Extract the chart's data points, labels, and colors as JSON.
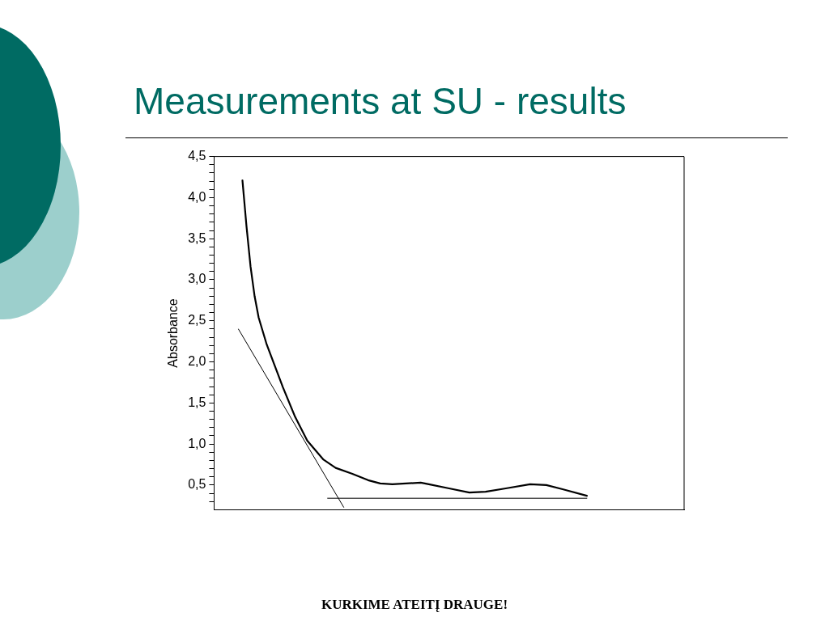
{
  "chart_data": {
    "type": "line",
    "title": "Measurements at SU - results",
    "ylabel": "Absorbance",
    "categories": [
      null,
      null,
      null,
      null,
      null,
      null,
      null,
      null,
      null,
      null,
      null,
      null,
      null,
      null,
      null,
      null,
      null,
      null,
      null,
      null,
      null,
      null,
      null,
      null,
      null,
      null,
      null,
      null,
      null,
      null,
      null,
      null,
      null,
      null,
      null,
      null,
      null,
      null,
      null,
      null,
      null,
      null,
      null,
      null,
      null,
      null,
      null,
      null,
      null,
      null,
      null,
      null,
      null,
      null,
      null,
      null,
      null,
      null,
      null,
      null,
      null,
      null,
      null,
      null,
      null,
      null,
      null,
      null,
      null,
      null,
      null,
      null,
      null,
      null,
      null,
      null,
      null,
      null,
      null,
      null,
      null,
      null,
      null,
      null,
      null,
      null,
      null,
      null,
      null,
      null,
      null,
      null,
      null,
      null,
      null,
      null,
      null,
      null,
      null,
      null,
      null,
      null,
      null,
      null,
      null,
      null,
      null,
      null,
      null,
      null,
      null,
      null,
      null,
      null,
      null,
      null,
      null
    ],
    "series": [
      {
        "color": "#000000",
        "values": [
          null,
          null,
          null,
          null,
          null,
          null,
          null,
          4.21,
          3.65,
          3.16,
          2.8,
          2.54,
          null,
          2.21,
          null,
          1.95,
          null,
          1.69,
          null,
          null,
          1.33,
          null,
          null,
          1.04,
          null,
          null,
          null,
          0.81,
          null,
          null,
          0.71,
          null,
          null,
          null,
          0.64,
          null,
          null,
          null,
          0.56,
          null,
          null,
          0.52,
          null,
          null,
          0.51,
          null,
          null,
          null,
          null,
          null,
          null,
          0.53,
          null,
          0.51,
          null,
          null,
          null,
          null,
          0.46,
          null,
          null,
          null,
          null,
          0.41,
          null,
          null,
          null,
          0.42,
          null,
          null,
          null,
          null,
          0.46,
          null,
          null,
          null,
          null,
          null,
          0.51,
          null,
          null,
          null,
          0.5,
          null,
          null,
          null,
          0.45,
          null,
          null,
          null,
          null,
          null,
          0.37,
          null,
          null,
          null,
          null,
          null,
          null,
          null,
          null,
          null,
          null,
          null,
          null,
          null,
          null,
          null,
          null,
          null,
          null,
          null,
          null,
          null,
          null,
          null,
          null
        ]
      },
      {
        "color": "#000000",
        "values": [
          null,
          null,
          null,
          null,
          null,
          null,
          2.4,
          null,
          null,
          null,
          null,
          null,
          null,
          null,
          null,
          null,
          null,
          null,
          null,
          null,
          null,
          null,
          null,
          null,
          null,
          null,
          null,
          null,
          null,
          null,
          null,
          null,
          0.23,
          null,
          null,
          null,
          null,
          null,
          null,
          null,
          null,
          null,
          null,
          null,
          null,
          null,
          null,
          null,
          null,
          null,
          null,
          null,
          null,
          null,
          null,
          null,
          null,
          null,
          null,
          null,
          null,
          null,
          null,
          null,
          null,
          null,
          null,
          null,
          null,
          null,
          null,
          null,
          null,
          null,
          null,
          null,
          null,
          null,
          null,
          null,
          null,
          null,
          null,
          null,
          null,
          null,
          null,
          null,
          null,
          null,
          null,
          null,
          null,
          null,
          null,
          null,
          null,
          null,
          null,
          null,
          null,
          null,
          null,
          null,
          null,
          null,
          null,
          null,
          null,
          null,
          null,
          null,
          null,
          null,
          null,
          null,
          null
        ]
      },
      {
        "color": "#000000",
        "values": [
          null,
          null,
          null,
          null,
          null,
          null,
          null,
          null,
          null,
          null,
          null,
          null,
          null,
          null,
          null,
          null,
          null,
          null,
          null,
          null,
          null,
          null,
          null,
          null,
          null,
          null,
          null,
          null,
          0.34,
          null,
          null,
          null,
          null,
          null,
          null,
          null,
          null,
          null,
          null,
          null,
          null,
          null,
          null,
          null,
          null,
          null,
          null,
          null,
          null,
          null,
          null,
          null,
          null,
          null,
          null,
          null,
          null,
          null,
          null,
          null,
          null,
          null,
          null,
          null,
          null,
          null,
          null,
          null,
          null,
          null,
          null,
          null,
          null,
          null,
          null,
          null,
          null,
          null,
          null,
          null,
          null,
          null,
          null,
          null,
          null,
          null,
          null,
          null,
          null,
          null,
          null,
          null,
          0.34,
          null,
          null,
          null,
          null,
          null,
          null,
          null,
          null,
          null,
          null,
          null,
          null,
          null,
          null,
          null,
          null,
          null,
          null,
          null,
          null,
          null,
          null,
          null,
          null
        ]
      }
    ],
    "ylim": [
      0.2,
      4.5
    ],
    "yticks": [
      {
        "value": 0.3,
        "label": null
      },
      {
        "value": 0.4,
        "label": null
      },
      {
        "value": 0.5,
        "label": "0,5"
      },
      {
        "value": 0.6,
        "label": null
      },
      {
        "value": 0.7,
        "label": null
      },
      {
        "value": 0.8,
        "label": null
      },
      {
        "value": 0.9,
        "label": null
      },
      {
        "value": 1,
        "label": "1,0"
      },
      {
        "value": 1.1,
        "label": null
      },
      {
        "value": 1.2,
        "label": null
      },
      {
        "value": 1.3,
        "label": null
      },
      {
        "value": 1.4,
        "label": null
      },
      {
        "value": 1.5,
        "label": "1,5"
      },
      {
        "value": 1.6,
        "label": null
      },
      {
        "value": 1.7,
        "label": null
      },
      {
        "value": 1.8,
        "label": null
      },
      {
        "value": 1.9,
        "label": null
      },
      {
        "value": 2,
        "label": "2,0"
      },
      {
        "value": 2.1,
        "label": null
      },
      {
        "value": 2.2,
        "label": null
      },
      {
        "value": 2.3,
        "label": null
      },
      {
        "value": 2.4,
        "label": null
      },
      {
        "value": 2.5,
        "label": "2,5"
      },
      {
        "value": 2.6,
        "label": null
      },
      {
        "value": 2.7,
        "label": null
      },
      {
        "value": 2.8,
        "label": null
      },
      {
        "value": 2.9,
        "label": null
      },
      {
        "value": 3,
        "label": "3,0"
      },
      {
        "value": 3.1,
        "label": null
      },
      {
        "value": 3.2,
        "label": null
      },
      {
        "value": 3.3,
        "label": null
      },
      {
        "value": 3.4,
        "label": null
      },
      {
        "value": 3.5,
        "label": "3,5"
      },
      {
        "value": 3.6,
        "label": null
      },
      {
        "value": 3.7,
        "label": null
      },
      {
        "value": 3.8,
        "label": null
      },
      {
        "value": 3.9,
        "label": null
      },
      {
        "value": 4,
        "label": "4,0"
      },
      {
        "value": 4.1,
        "label": null
      },
      {
        "value": 4.2,
        "label": null
      },
      {
        "value": 4.3,
        "label": null
      },
      {
        "value": 4.4,
        "label": null
      },
      {
        "value": 4.5,
        "label": "4,5"
      }
    ],
    "tick_labels": "y",
    "marker": "none",
    "line_style": "solid",
    "legend": false,
    "annotations": [
      "KURKIME ATEITĮ DRAUGE!"
    ]
  }
}
